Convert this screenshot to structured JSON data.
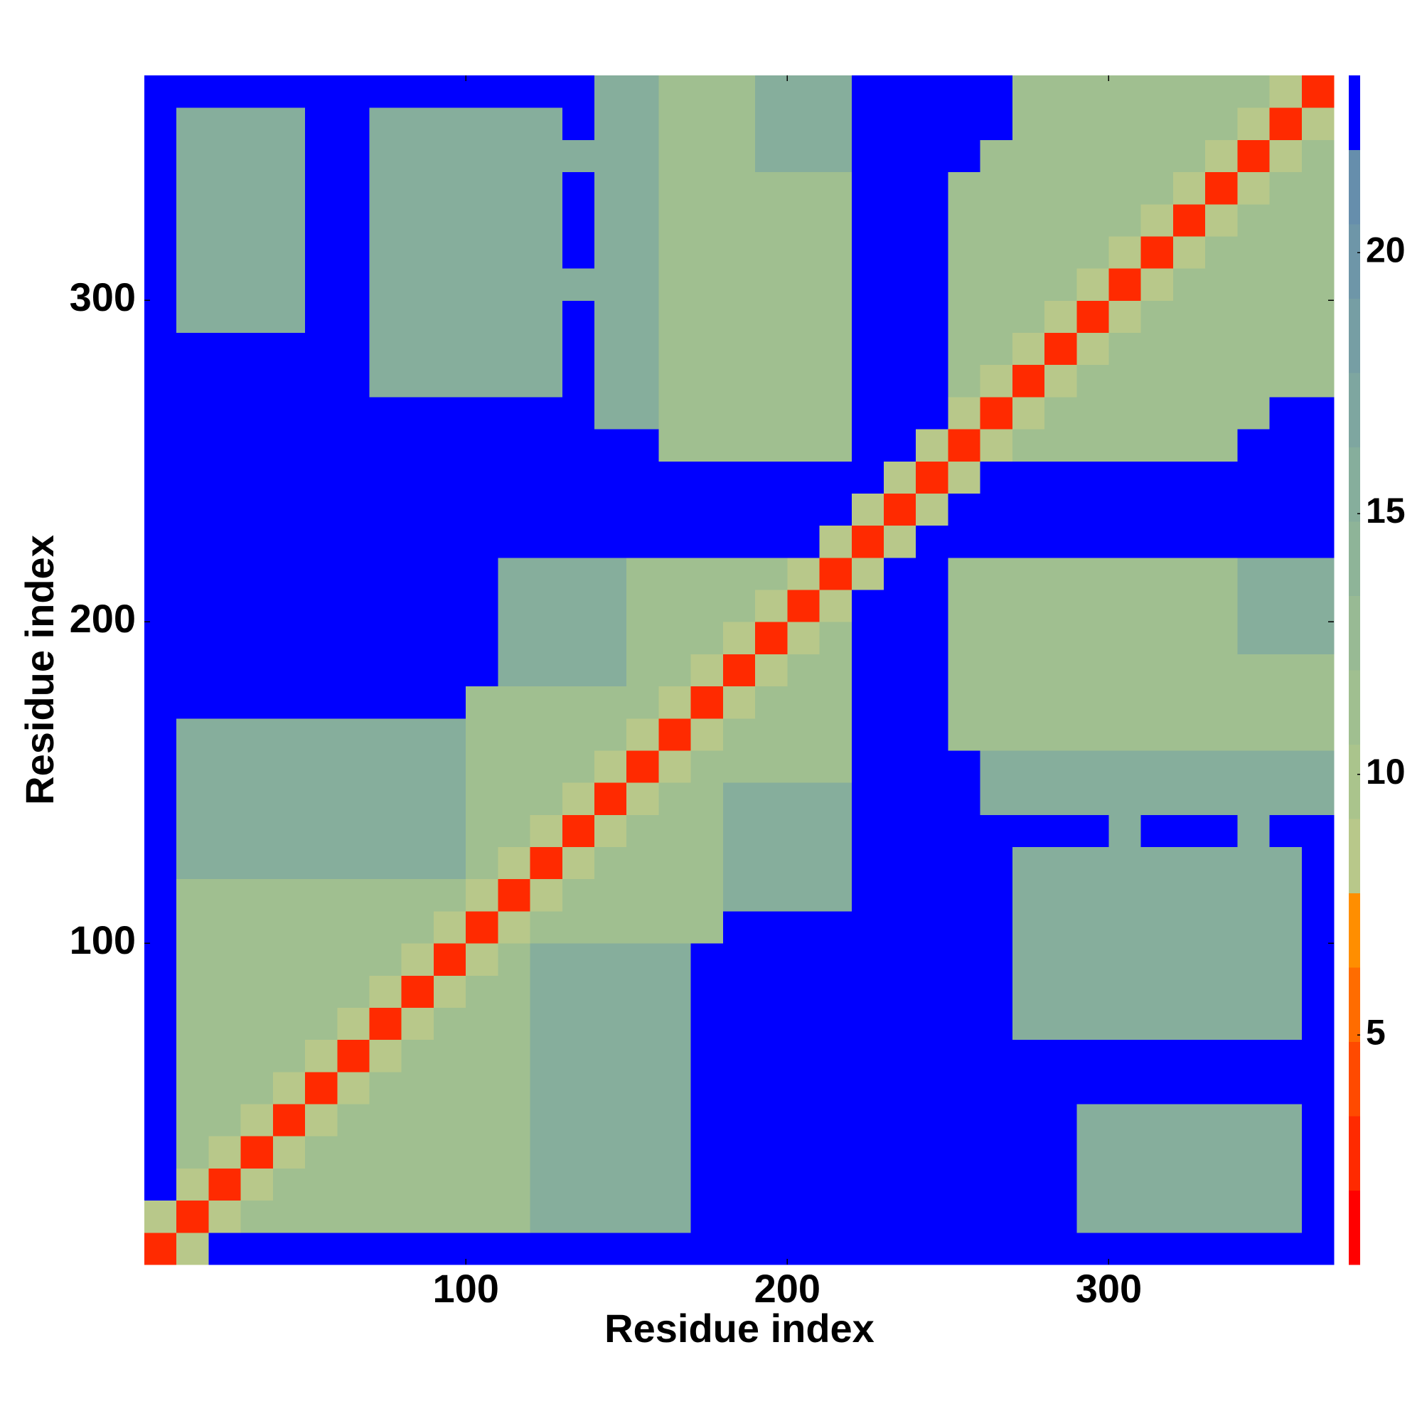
{
  "chart_data": {
    "type": "heatmap",
    "xlabel": "Residue index",
    "ylabel": "Residue index",
    "x": [
      5,
      15,
      25,
      35,
      45,
      55,
      65,
      75,
      85,
      95,
      105,
      115,
      125,
      135,
      145,
      155,
      165,
      175,
      185,
      195,
      205,
      215,
      225,
      235,
      245,
      255,
      265,
      275,
      285,
      295,
      305,
      315,
      325,
      335,
      345,
      355,
      365
    ],
    "y": [
      5,
      15,
      25,
      35,
      45,
      55,
      65,
      75,
      85,
      95,
      105,
      115,
      125,
      135,
      145,
      155,
      165,
      175,
      185,
      195,
      205,
      215,
      225,
      235,
      245,
      255,
      265,
      275,
      285,
      295,
      305,
      315,
      325,
      335,
      345,
      355,
      365
    ],
    "z": [
      [
        3,
        9,
        23,
        23,
        23,
        23,
        23,
        23,
        23,
        23,
        23,
        23,
        23,
        23,
        23,
        23,
        23,
        23,
        23,
        23,
        23,
        23,
        23,
        23,
        23,
        23,
        23,
        23,
        23,
        23,
        23,
        23,
        23,
        23,
        23,
        23,
        23
      ],
      [
        9,
        3,
        9,
        11,
        11,
        11,
        11,
        11,
        11,
        11,
        11,
        11,
        15,
        15,
        15,
        15,
        15,
        23,
        23,
        23,
        23,
        23,
        23,
        23,
        23,
        23,
        23,
        23,
        23,
        15,
        15,
        15,
        15,
        15,
        15,
        15,
        23
      ],
      [
        23,
        9,
        3,
        9,
        11,
        11,
        11,
        11,
        11,
        11,
        11,
        11,
        15,
        15,
        15,
        15,
        15,
        23,
        23,
        23,
        23,
        23,
        23,
        23,
        23,
        23,
        23,
        23,
        23,
        15,
        15,
        15,
        15,
        15,
        15,
        15,
        23
      ],
      [
        23,
        11,
        9,
        3,
        9,
        11,
        11,
        11,
        11,
        11,
        11,
        11,
        15,
        15,
        15,
        15,
        15,
        23,
        23,
        23,
        23,
        23,
        23,
        23,
        23,
        23,
        23,
        23,
        23,
        15,
        15,
        15,
        15,
        15,
        15,
        15,
        23
      ],
      [
        23,
        11,
        11,
        9,
        3,
        9,
        11,
        11,
        11,
        11,
        11,
        11,
        15,
        15,
        15,
        15,
        15,
        23,
        23,
        23,
        23,
        23,
        23,
        23,
        23,
        23,
        23,
        23,
        23,
        15,
        15,
        15,
        15,
        15,
        15,
        15,
        23
      ],
      [
        23,
        11,
        11,
        11,
        9,
        3,
        9,
        11,
        11,
        11,
        11,
        11,
        15,
        15,
        15,
        15,
        15,
        23,
        23,
        23,
        23,
        23,
        23,
        23,
        23,
        23,
        23,
        23,
        23,
        23,
        23,
        23,
        23,
        23,
        23,
        23,
        23
      ],
      [
        23,
        11,
        11,
        11,
        11,
        9,
        3,
        9,
        11,
        11,
        11,
        11,
        15,
        15,
        15,
        15,
        15,
        23,
        23,
        23,
        23,
        23,
        23,
        23,
        23,
        23,
        23,
        23,
        23,
        23,
        23,
        23,
        23,
        23,
        23,
        23,
        23
      ],
      [
        23,
        11,
        11,
        11,
        11,
        11,
        9,
        3,
        9,
        11,
        11,
        11,
        15,
        15,
        15,
        15,
        15,
        23,
        23,
        23,
        23,
        23,
        23,
        23,
        23,
        23,
        23,
        15,
        15,
        15,
        15,
        15,
        15,
        15,
        15,
        15,
        23
      ],
      [
        23,
        11,
        11,
        11,
        11,
        11,
        11,
        9,
        3,
        9,
        11,
        11,
        15,
        15,
        15,
        15,
        15,
        23,
        23,
        23,
        23,
        23,
        23,
        23,
        23,
        23,
        23,
        15,
        15,
        15,
        15,
        15,
        15,
        15,
        15,
        15,
        23
      ],
      [
        23,
        11,
        11,
        11,
        11,
        11,
        11,
        11,
        9,
        3,
        9,
        11,
        15,
        15,
        15,
        15,
        15,
        23,
        23,
        23,
        23,
        23,
        23,
        23,
        23,
        23,
        23,
        15,
        15,
        15,
        15,
        15,
        15,
        15,
        15,
        15,
        23
      ],
      [
        23,
        11,
        11,
        11,
        11,
        11,
        11,
        11,
        11,
        9,
        3,
        9,
        11,
        11,
        11,
        11,
        11,
        11,
        23,
        23,
        23,
        23,
        23,
        23,
        23,
        23,
        23,
        15,
        15,
        15,
        15,
        15,
        15,
        15,
        15,
        15,
        23
      ],
      [
        23,
        11,
        11,
        11,
        11,
        11,
        11,
        11,
        11,
        11,
        9,
        3,
        9,
        11,
        11,
        11,
        11,
        11,
        15,
        15,
        15,
        15,
        23,
        23,
        23,
        23,
        23,
        15,
        15,
        15,
        15,
        15,
        15,
        15,
        15,
        15,
        23
      ],
      [
        23,
        15,
        15,
        15,
        15,
        15,
        15,
        15,
        15,
        15,
        11,
        9,
        3,
        9,
        11,
        11,
        11,
        11,
        15,
        15,
        15,
        15,
        23,
        23,
        23,
        23,
        23,
        15,
        15,
        15,
        15,
        15,
        15,
        15,
        15,
        15,
        23
      ],
      [
        23,
        15,
        15,
        15,
        15,
        15,
        15,
        15,
        15,
        15,
        11,
        11,
        9,
        3,
        9,
        11,
        11,
        11,
        15,
        15,
        15,
        15,
        23,
        23,
        23,
        23,
        23,
        23,
        23,
        23,
        15,
        23,
        23,
        23,
        15,
        23,
        23
      ],
      [
        23,
        15,
        15,
        15,
        15,
        15,
        15,
        15,
        15,
        15,
        11,
        11,
        11,
        9,
        3,
        9,
        11,
        11,
        15,
        15,
        15,
        15,
        23,
        23,
        23,
        23,
        15,
        15,
        15,
        15,
        15,
        15,
        15,
        15,
        15,
        15,
        15
      ],
      [
        23,
        15,
        15,
        15,
        15,
        15,
        15,
        15,
        15,
        15,
        11,
        11,
        11,
        11,
        9,
        3,
        9,
        11,
        11,
        11,
        11,
        11,
        23,
        23,
        23,
        23,
        15,
        15,
        15,
        15,
        15,
        15,
        15,
        15,
        15,
        15,
        15
      ],
      [
        23,
        15,
        15,
        15,
        15,
        15,
        15,
        15,
        15,
        15,
        11,
        11,
        11,
        11,
        11,
        9,
        3,
        9,
        11,
        11,
        11,
        11,
        23,
        23,
        23,
        11,
        11,
        11,
        11,
        11,
        11,
        11,
        11,
        11,
        11,
        11,
        11
      ],
      [
        23,
        23,
        23,
        23,
        23,
        23,
        23,
        23,
        23,
        23,
        11,
        11,
        11,
        11,
        11,
        11,
        9,
        3,
        9,
        11,
        11,
        11,
        23,
        23,
        23,
        11,
        11,
        11,
        11,
        11,
        11,
        11,
        11,
        11,
        11,
        11,
        11
      ],
      [
        23,
        23,
        23,
        23,
        23,
        23,
        23,
        23,
        23,
        23,
        23,
        15,
        15,
        15,
        15,
        11,
        11,
        9,
        3,
        9,
        11,
        11,
        23,
        23,
        23,
        11,
        11,
        11,
        11,
        11,
        11,
        11,
        11,
        11,
        11,
        11,
        11
      ],
      [
        23,
        23,
        23,
        23,
        23,
        23,
        23,
        23,
        23,
        23,
        23,
        15,
        15,
        15,
        15,
        11,
        11,
        11,
        9,
        3,
        9,
        11,
        23,
        23,
        23,
        11,
        11,
        11,
        11,
        11,
        11,
        11,
        11,
        11,
        15,
        15,
        15
      ],
      [
        23,
        23,
        23,
        23,
        23,
        23,
        23,
        23,
        23,
        23,
        23,
        15,
        15,
        15,
        15,
        11,
        11,
        11,
        11,
        9,
        3,
        9,
        23,
        23,
        23,
        11,
        11,
        11,
        11,
        11,
        11,
        11,
        11,
        11,
        15,
        15,
        15
      ],
      [
        23,
        23,
        23,
        23,
        23,
        23,
        23,
        23,
        23,
        23,
        23,
        15,
        15,
        15,
        15,
        11,
        11,
        11,
        11,
        11,
        9,
        3,
        9,
        23,
        23,
        11,
        11,
        11,
        11,
        11,
        11,
        11,
        11,
        11,
        15,
        15,
        15
      ],
      [
        23,
        23,
        23,
        23,
        23,
        23,
        23,
        23,
        23,
        23,
        23,
        23,
        23,
        23,
        23,
        23,
        23,
        23,
        23,
        23,
        23,
        9,
        3,
        9,
        23,
        23,
        23,
        23,
        23,
        23,
        23,
        23,
        23,
        23,
        23,
        23,
        23
      ],
      [
        23,
        23,
        23,
        23,
        23,
        23,
        23,
        23,
        23,
        23,
        23,
        23,
        23,
        23,
        23,
        23,
        23,
        23,
        23,
        23,
        23,
        23,
        9,
        3,
        9,
        23,
        23,
        23,
        23,
        23,
        23,
        23,
        23,
        23,
        23,
        23,
        23
      ],
      [
        23,
        23,
        23,
        23,
        23,
        23,
        23,
        23,
        23,
        23,
        23,
        23,
        23,
        23,
        23,
        23,
        23,
        23,
        23,
        23,
        23,
        23,
        23,
        9,
        3,
        9,
        23,
        23,
        23,
        23,
        23,
        23,
        23,
        23,
        23,
        23,
        23
      ],
      [
        23,
        23,
        23,
        23,
        23,
        23,
        23,
        23,
        23,
        23,
        23,
        23,
        23,
        23,
        23,
        23,
        11,
        11,
        11,
        11,
        11,
        11,
        23,
        23,
        9,
        3,
        9,
        11,
        11,
        11,
        11,
        11,
        11,
        11,
        23,
        23,
        23
      ],
      [
        23,
        23,
        23,
        23,
        23,
        23,
        23,
        23,
        23,
        23,
        23,
        23,
        23,
        23,
        15,
        15,
        11,
        11,
        11,
        11,
        11,
        11,
        23,
        23,
        23,
        9,
        3,
        9,
        11,
        11,
        11,
        11,
        11,
        11,
        11,
        23,
        23
      ],
      [
        23,
        23,
        23,
        23,
        23,
        23,
        23,
        15,
        15,
        15,
        15,
        15,
        15,
        23,
        15,
        15,
        11,
        11,
        11,
        11,
        11,
        11,
        23,
        23,
        23,
        11,
        9,
        3,
        9,
        11,
        11,
        11,
        11,
        11,
        11,
        11,
        11
      ],
      [
        23,
        23,
        23,
        23,
        23,
        23,
        23,
        15,
        15,
        15,
        15,
        15,
        15,
        23,
        15,
        15,
        11,
        11,
        11,
        11,
        11,
        11,
        23,
        23,
        23,
        11,
        11,
        9,
        3,
        9,
        11,
        11,
        11,
        11,
        11,
        11,
        11
      ],
      [
        23,
        15,
        15,
        15,
        15,
        23,
        23,
        15,
        15,
        15,
        15,
        15,
        15,
        23,
        15,
        15,
        11,
        11,
        11,
        11,
        11,
        11,
        23,
        23,
        23,
        11,
        11,
        11,
        9,
        3,
        9,
        11,
        11,
        11,
        11,
        11,
        11
      ],
      [
        23,
        15,
        15,
        15,
        15,
        23,
        23,
        15,
        15,
        15,
        15,
        15,
        15,
        15,
        15,
        15,
        11,
        11,
        11,
        11,
        11,
        11,
        23,
        23,
        23,
        11,
        11,
        11,
        11,
        9,
        3,
        9,
        11,
        11,
        11,
        11,
        11
      ],
      [
        23,
        15,
        15,
        15,
        15,
        23,
        23,
        15,
        15,
        15,
        15,
        15,
        15,
        23,
        15,
        15,
        11,
        11,
        11,
        11,
        11,
        11,
        23,
        23,
        23,
        11,
        11,
        11,
        11,
        11,
        9,
        3,
        9,
        11,
        11,
        11,
        11
      ],
      [
        23,
        15,
        15,
        15,
        15,
        23,
        23,
        15,
        15,
        15,
        15,
        15,
        15,
        23,
        15,
        15,
        11,
        11,
        11,
        11,
        11,
        11,
        23,
        23,
        23,
        11,
        11,
        11,
        11,
        11,
        11,
        9,
        3,
        9,
        11,
        11,
        11
      ],
      [
        23,
        15,
        15,
        15,
        15,
        23,
        23,
        15,
        15,
        15,
        15,
        15,
        15,
        23,
        15,
        15,
        11,
        11,
        11,
        11,
        11,
        11,
        23,
        23,
        23,
        11,
        11,
        11,
        11,
        11,
        11,
        11,
        9,
        3,
        9,
        11,
        11
      ],
      [
        23,
        15,
        15,
        15,
        15,
        23,
        23,
        15,
        15,
        15,
        15,
        15,
        15,
        15,
        15,
        15,
        11,
        11,
        11,
        15,
        15,
        15,
        23,
        23,
        23,
        23,
        11,
        11,
        11,
        11,
        11,
        11,
        11,
        9,
        3,
        9,
        11
      ],
      [
        23,
        15,
        15,
        15,
        15,
        23,
        23,
        15,
        15,
        15,
        15,
        15,
        15,
        23,
        15,
        15,
        11,
        11,
        11,
        15,
        15,
        15,
        23,
        23,
        23,
        23,
        23,
        11,
        11,
        11,
        11,
        11,
        11,
        11,
        9,
        3,
        9
      ],
      [
        23,
        23,
        23,
        23,
        23,
        23,
        23,
        23,
        23,
        23,
        23,
        23,
        23,
        23,
        15,
        15,
        11,
        11,
        11,
        15,
        15,
        15,
        23,
        23,
        23,
        23,
        23,
        11,
        11,
        11,
        11,
        11,
        11,
        11,
        11,
        9,
        3
      ]
    ],
    "xlim": [
      0,
      370
    ],
    "ylim": [
      0,
      370
    ],
    "xticks": [
      100,
      200,
      300
    ],
    "yticks": [
      100,
      200,
      300
    ],
    "clim": [
      0.6,
      23.4
    ],
    "cticks": [
      5,
      10,
      15,
      20
    ],
    "colors": [
      "#ff0000",
      "#ff2a00",
      "#ff4a00",
      "#ff6c00",
      "#ff8e00",
      "#b8c88a",
      "#aac48c",
      "#a0bf90",
      "#98ba94",
      "#8eb498",
      "#86ae9c",
      "#7ea6a0",
      "#769ea4",
      "#6e96a8",
      "#668eac",
      "#0000ff"
    ]
  }
}
